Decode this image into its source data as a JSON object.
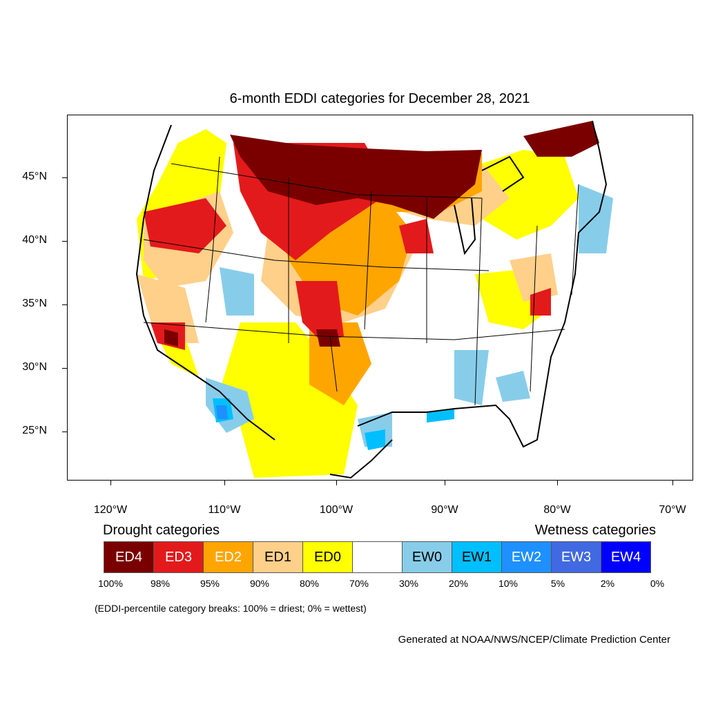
{
  "title": "6-month EDDI categories for December 28, 2021",
  "map": {
    "projection": "lambert-conformal-conus",
    "lat_labels": [
      "45°N",
      "40°N",
      "35°N",
      "30°N",
      "25°N"
    ],
    "lon_labels": [
      "120°W",
      "110°W",
      "100°W",
      "90°W",
      "80°W",
      "70°W"
    ],
    "regions_shown": [
      {
        "category": "ED4",
        "area": "Northern Plains / Montana–North Dakota–Minnesota"
      },
      {
        "category": "ED3",
        "area": "Northern California and Oregon interior"
      },
      {
        "category": "ED3",
        "area": "Texas Panhandle / western Oklahoma"
      },
      {
        "category": "ED2",
        "area": "Central Plains"
      },
      {
        "category": "ED0",
        "area": "Southwest and Texas"
      },
      {
        "category": "EW1",
        "area": "Gulf Coast and Sonora"
      }
    ]
  },
  "legend": {
    "drought_heading": "Drought categories",
    "wetness_heading": "Wetness categories",
    "categories": [
      {
        "label": "ED4",
        "color": "#7a0000",
        "text_color": "#ffffff"
      },
      {
        "label": "ED3",
        "color": "#e31a1c",
        "text_color": "#ffffff"
      },
      {
        "label": "ED2",
        "color": "#ffa500",
        "text_color": "#ffffff"
      },
      {
        "label": "ED1",
        "color": "#ffd08a",
        "text_color": "#000000"
      },
      {
        "label": "ED0",
        "color": "#ffff00",
        "text_color": "#000000"
      },
      {
        "label": "",
        "color": "#ffffff",
        "text_color": "#000000"
      },
      {
        "label": "EW0",
        "color": "#87cdea",
        "text_color": "#000000"
      },
      {
        "label": "EW1",
        "color": "#00bfff",
        "text_color": "#000000"
      },
      {
        "label": "EW2",
        "color": "#1e90ff",
        "text_color": "#ffffff"
      },
      {
        "label": "EW3",
        "color": "#4169e1",
        "text_color": "#ffffff"
      },
      {
        "label": "EW4",
        "color": "#0000ff",
        "text_color": "#ffffff"
      }
    ],
    "percent_labels": [
      "100%",
      "98%",
      "95%",
      "90%",
      "80%",
      "70%",
      "30%",
      "20%",
      "10%",
      "5%",
      "2%",
      "0%"
    ],
    "note": "(EDDI-percentile category breaks: 100% = driest; 0% = wettest)"
  },
  "credit": "Generated at NOAA/NWS/NCEP/Climate Prediction Center"
}
